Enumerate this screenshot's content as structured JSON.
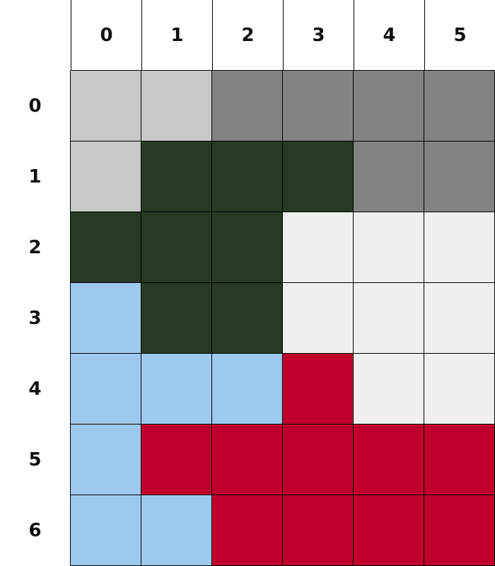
{
  "columns": [
    "0",
    "1",
    "2",
    "3",
    "4",
    "5"
  ],
  "rows": [
    "0",
    "1",
    "2",
    "3",
    "4",
    "5",
    "6"
  ],
  "palette": {
    "L": "#c8c8c8",
    "M": "#838383",
    "D": "#273b24",
    "W": "#efefef",
    "B": "#9ec9ef",
    "R": "#c0002c"
  },
  "grid": [
    [
      "L",
      "L",
      "M",
      "M",
      "M",
      "M"
    ],
    [
      "L",
      "D",
      "D",
      "D",
      "M",
      "M"
    ],
    [
      "D",
      "D",
      "D",
      "W",
      "W",
      "W"
    ],
    [
      "B",
      "D",
      "D",
      "W",
      "W",
      "W"
    ],
    [
      "B",
      "B",
      "B",
      "R",
      "W",
      "W"
    ],
    [
      "B",
      "R",
      "R",
      "R",
      "R",
      "R"
    ],
    [
      "B",
      "B",
      "R",
      "R",
      "R",
      "R"
    ]
  ]
}
